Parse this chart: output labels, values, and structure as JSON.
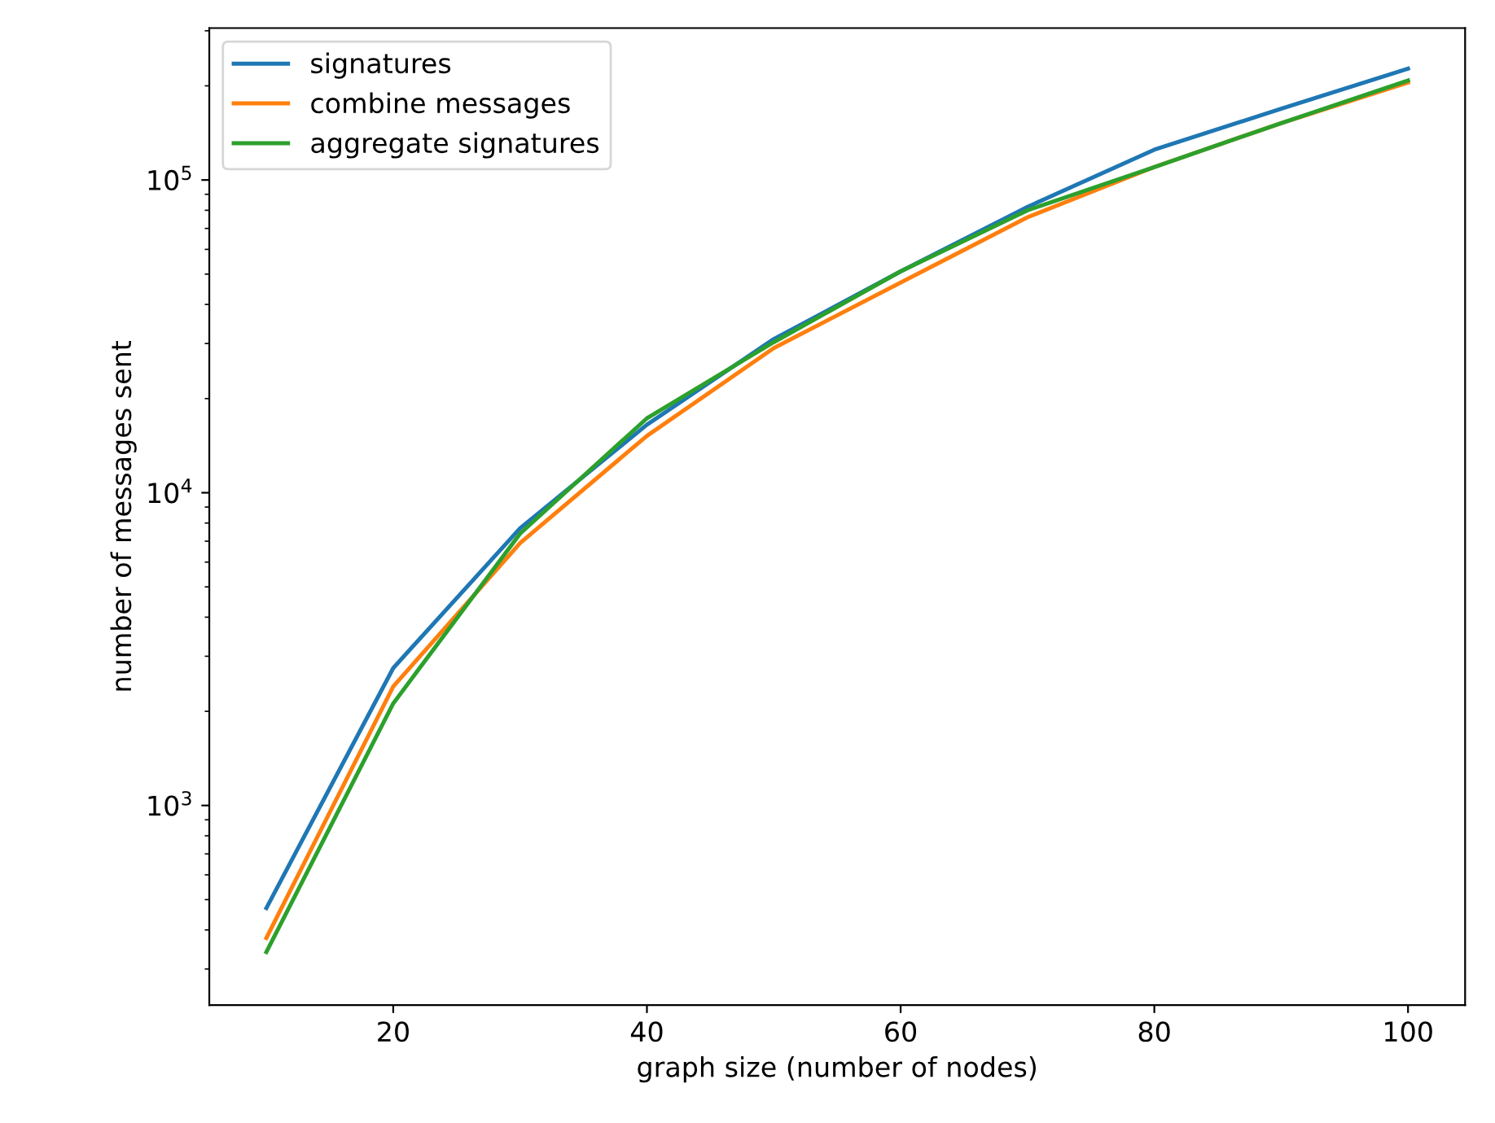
{
  "chart_data": {
    "type": "line",
    "xlabel": "graph size (number of nodes)",
    "ylabel": "number of messages sent",
    "x": [
      10,
      20,
      30,
      40,
      50,
      60,
      70,
      80,
      90,
      100
    ],
    "series": [
      {
        "name": "signatures",
        "color": "#1f77b4",
        "values": [
          470,
          2750,
          7700,
          16500,
          31000,
          51000,
          82000,
          125000,
          169000,
          227000
        ]
      },
      {
        "name": "combine messages",
        "color": "#ff7f0e",
        "values": [
          377,
          2400,
          6900,
          15200,
          29000,
          47000,
          76000,
          110000,
          152000,
          205000
        ]
      },
      {
        "name": "aggregate signatures",
        "color": "#2ca02c",
        "values": [
          340,
          2120,
          7400,
          17300,
          30300,
          51000,
          80000,
          110000,
          152000,
          208000
        ]
      }
    ],
    "log": "y",
    "xlim": [
      5.5,
      104.5
    ],
    "ylim": [
      230,
      306000
    ],
    "xticks": [
      20,
      40,
      60,
      80,
      100
    ],
    "yticks": [
      {
        "value": 1000,
        "label": "10$^{3}$"
      },
      {
        "value": 10000,
        "label": "10$^{4}$"
      },
      {
        "value": 100000,
        "label": "10$^{5}$"
      }
    ],
    "legend": "top left",
    "line_style": "solid",
    "marker": "none"
  }
}
